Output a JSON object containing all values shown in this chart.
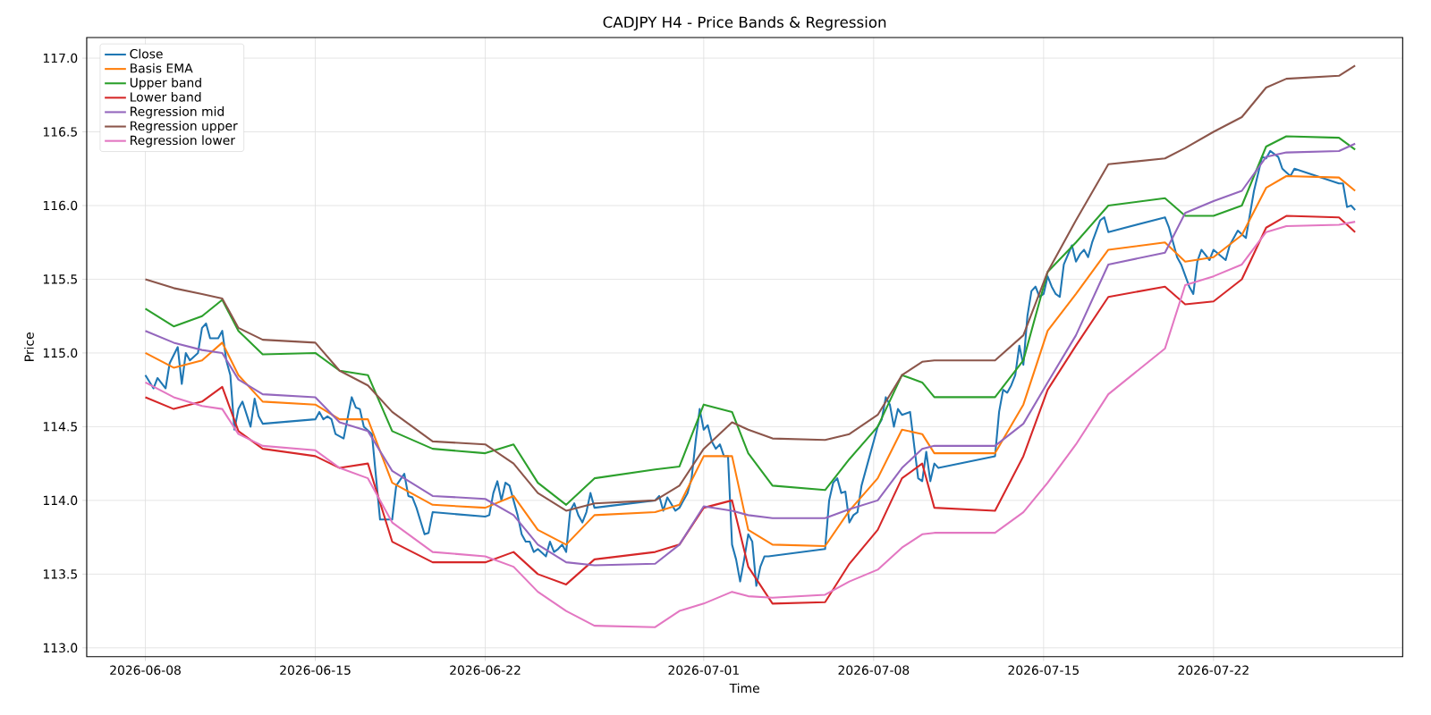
{
  "chart_data": {
    "type": "line",
    "title": "CADJPY H4 - Price Bands & Regression",
    "xlabel": "Time",
    "ylabel": "Price",
    "xlim": [
      "2026-06-05T14:00",
      "2026-07-29T19:00"
    ],
    "ylim": [
      112.94,
      117.14
    ],
    "xticks": [
      "2026-06-08",
      "2026-06-15",
      "2026-06-22",
      "2026-07-01",
      "2026-07-08",
      "2026-07-15",
      "2026-07-22"
    ],
    "yticks": [
      {
        "value": 113,
        "label": "113.0"
      },
      {
        "value": 113.5,
        "label": "113.5"
      },
      {
        "value": 114,
        "label": "114.0"
      },
      {
        "value": 114.5,
        "label": "114.5"
      },
      {
        "value": 115,
        "label": "115.0"
      },
      {
        "value": 115.5,
        "label": "115.5"
      },
      {
        "value": 116,
        "label": "116.0"
      },
      {
        "value": 116.5,
        "label": "116.5"
      },
      {
        "value": 117,
        "label": "117.0"
      }
    ],
    "grid": true,
    "legend": "top left",
    "marker": "none",
    "line_style": "solid",
    "series": [
      {
        "name": "Close",
        "color": "#1f77b4",
        "x": [
          "2026-06-08T00:00",
          "2026-06-08T08:00",
          "2026-06-08T12:00",
          "2026-06-08T20:00",
          "2026-06-09T00:00",
          "2026-06-09T08:00",
          "2026-06-09T12:00",
          "2026-06-09T16:00",
          "2026-06-09T20:00",
          "2026-06-10T04:00",
          "2026-06-10T08:00",
          "2026-06-10T12:00",
          "2026-06-10T16:00",
          "2026-06-11T00:00",
          "2026-06-11T04:00",
          "2026-06-11T08:00",
          "2026-06-11T12:00",
          "2026-06-11T16:00",
          "2026-06-11T20:00",
          "2026-06-12T00:00",
          "2026-06-12T08:00",
          "2026-06-12T12:00",
          "2026-06-12T16:00",
          "2026-06-12T20:00",
          "2026-06-15T00:00",
          "2026-06-15T04:00",
          "2026-06-15T08:00",
          "2026-06-15T12:00",
          "2026-06-15T16:00",
          "2026-06-15T20:00",
          "2026-06-16T04:00",
          "2026-06-16T12:00",
          "2026-06-16T16:00",
          "2026-06-16T20:00",
          "2026-06-17T00:00",
          "2026-06-17T08:00",
          "2026-06-17T16:00",
          "2026-06-18T04:00",
          "2026-06-18T08:00",
          "2026-06-18T16:00",
          "2026-06-18T20:00",
          "2026-06-19T00:00",
          "2026-06-19T04:00",
          "2026-06-19T12:00",
          "2026-06-19T16:00",
          "2026-06-19T20:00",
          "2026-06-22T00:00",
          "2026-06-22T04:00",
          "2026-06-22T08:00",
          "2026-06-22T12:00",
          "2026-06-22T16:00",
          "2026-06-22T20:00",
          "2026-06-23T00:00",
          "2026-06-23T04:00",
          "2026-06-23T08:00",
          "2026-06-23T12:00",
          "2026-06-23T16:00",
          "2026-06-23T20:00",
          "2026-06-24T00:00",
          "2026-06-24T04:00",
          "2026-06-24T12:00",
          "2026-06-24T16:00",
          "2026-06-24T20:00",
          "2026-06-25T00:00",
          "2026-06-25T04:00",
          "2026-06-25T08:00",
          "2026-06-25T12:00",
          "2026-06-25T16:00",
          "2026-06-25T20:00",
          "2026-06-26T00:00",
          "2026-06-26T04:00",
          "2026-06-26T08:00",
          "2026-06-26T12:00",
          "2026-06-29T00:00",
          "2026-06-29T04:00",
          "2026-06-29T08:00",
          "2026-06-29T12:00",
          "2026-06-29T20:00",
          "2026-06-30T00:00",
          "2026-06-30T08:00",
          "2026-06-30T12:00",
          "2026-06-30T16:00",
          "2026-06-30T20:00",
          "2026-07-01T00:00",
          "2026-07-01T04:00",
          "2026-07-01T08:00",
          "2026-07-01T12:00",
          "2026-07-01T16:00",
          "2026-07-01T20:00",
          "2026-07-02T00:00",
          "2026-07-02T04:00",
          "2026-07-02T08:00",
          "2026-07-02T12:00",
          "2026-07-02T16:00",
          "2026-07-02T20:00",
          "2026-07-03T00:00",
          "2026-07-03T04:00",
          "2026-07-03T08:00",
          "2026-07-03T12:00",
          "2026-07-03T16:00",
          "2026-07-06T00:00",
          "2026-07-06T04:00",
          "2026-07-06T08:00",
          "2026-07-06T12:00",
          "2026-07-06T16:00",
          "2026-07-06T20:00",
          "2026-07-07T00:00",
          "2026-07-07T04:00",
          "2026-07-07T08:00",
          "2026-07-07T12:00",
          "2026-07-07T20:00",
          "2026-07-08T04:00",
          "2026-07-08T08:00",
          "2026-07-08T12:00",
          "2026-07-08T16:00",
          "2026-07-08T20:00",
          "2026-07-09T00:00",
          "2026-07-09T04:00",
          "2026-07-09T12:00",
          "2026-07-09T20:00",
          "2026-07-10T00:00",
          "2026-07-10T04:00",
          "2026-07-10T08:00",
          "2026-07-10T12:00",
          "2026-07-10T16:00",
          "2026-07-13T00:00",
          "2026-07-13T04:00",
          "2026-07-13T08:00",
          "2026-07-13T12:00",
          "2026-07-13T16:00",
          "2026-07-13T20:00",
          "2026-07-14T00:00",
          "2026-07-14T04:00",
          "2026-07-14T08:00",
          "2026-07-14T12:00",
          "2026-07-14T16:00",
          "2026-07-14T20:00",
          "2026-07-15T00:00",
          "2026-07-15T04:00",
          "2026-07-15T08:00",
          "2026-07-15T12:00",
          "2026-07-15T16:00",
          "2026-07-15T20:00",
          "2026-07-16T04:00",
          "2026-07-16T08:00",
          "2026-07-16T12:00",
          "2026-07-16T16:00",
          "2026-07-16T20:00",
          "2026-07-17T00:00",
          "2026-07-17T08:00",
          "2026-07-17T12:00",
          "2026-07-17T16:00",
          "2026-07-20T00:00",
          "2026-07-20T04:00",
          "2026-07-20T12:00",
          "2026-07-20T16:00",
          "2026-07-21T00:00",
          "2026-07-21T04:00",
          "2026-07-21T08:00",
          "2026-07-21T12:00",
          "2026-07-21T20:00",
          "2026-07-22T00:00",
          "2026-07-22T12:00",
          "2026-07-22T16:00",
          "2026-07-23T00:00",
          "2026-07-23T08:00",
          "2026-07-23T16:00",
          "2026-07-24T00:00",
          "2026-07-24T04:00",
          "2026-07-24T08:00",
          "2026-07-24T16:00",
          "2026-07-24T20:00",
          "2026-07-25T04:00",
          "2026-07-25T08:00",
          "2026-07-27T04:00",
          "2026-07-27T08:00",
          "2026-07-27T12:00",
          "2026-07-27T16:00",
          "2026-07-27T20:00"
        ],
        "values": [
          114.85,
          114.76,
          114.83,
          114.76,
          114.93,
          115.04,
          114.79,
          115.0,
          114.95,
          115.0,
          115.17,
          115.2,
          115.1,
          115.1,
          115.15,
          114.95,
          114.85,
          114.48,
          114.62,
          114.67,
          114.5,
          114.69,
          114.57,
          114.52,
          114.55,
          114.6,
          114.55,
          114.57,
          114.55,
          114.45,
          114.42,
          114.7,
          114.63,
          114.62,
          114.5,
          114.45,
          113.87,
          113.87,
          114.1,
          114.18,
          114.03,
          114.02,
          113.95,
          113.77,
          113.78,
          113.92,
          113.89,
          113.9,
          114.05,
          114.13,
          114.0,
          114.12,
          114.1,
          114.0,
          113.9,
          113.77,
          113.72,
          113.72,
          113.65,
          113.67,
          113.62,
          113.72,
          113.65,
          113.67,
          113.7,
          113.65,
          113.93,
          113.98,
          113.9,
          113.85,
          113.92,
          114.05,
          113.95,
          114.0,
          114.03,
          113.93,
          114.02,
          113.93,
          113.95,
          114.05,
          114.15,
          114.4,
          114.62,
          114.48,
          114.51,
          114.4,
          114.35,
          114.38,
          114.3,
          114.3,
          113.7,
          113.6,
          113.45,
          113.6,
          113.77,
          113.72,
          113.42,
          113.55,
          113.62,
          113.62,
          113.67,
          114.0,
          114.12,
          114.15,
          114.05,
          114.06,
          113.85,
          113.9,
          113.92,
          114.1,
          114.3,
          114.5,
          114.55,
          114.7,
          114.65,
          114.5,
          114.62,
          114.58,
          114.6,
          114.15,
          114.13,
          114.33,
          114.13,
          114.25,
          114.22,
          114.3,
          114.6,
          114.75,
          114.73,
          114.78,
          114.85,
          115.05,
          114.92,
          115.25,
          115.42,
          115.45,
          115.38,
          115.4,
          115.52,
          115.45,
          115.4,
          115.38,
          115.6,
          115.73,
          115.62,
          115.67,
          115.7,
          115.65,
          115.75,
          115.9,
          115.92,
          115.82,
          115.92,
          115.85,
          115.65,
          115.6,
          115.45,
          115.4,
          115.62,
          115.7,
          115.63,
          115.7,
          115.63,
          115.73,
          115.83,
          115.78,
          116.1,
          116.33,
          116.32,
          116.37,
          116.33,
          116.25,
          116.2,
          116.25,
          116.15,
          116.15,
          115.99,
          116.0,
          115.97
        ]
      },
      {
        "name": "Basis EMA",
        "color": "#ff7f0e",
        "x": [
          "2026-06-08T00:00",
          "2026-06-09T04:00",
          "2026-06-10T08:00",
          "2026-06-11T04:00",
          "2026-06-11T20:00",
          "2026-06-12T20:00",
          "2026-06-15T00:00",
          "2026-06-16T00:00",
          "2026-06-17T04:00",
          "2026-06-18T04:00",
          "2026-06-19T20:00",
          "2026-06-22T00:00",
          "2026-06-23T04:00",
          "2026-06-24T04:00",
          "2026-06-25T08:00",
          "2026-06-26T12:00",
          "2026-06-29T00:00",
          "2026-06-30T00:00",
          "2026-07-01T00:00",
          "2026-07-02T04:00",
          "2026-07-02T20:00",
          "2026-07-03T20:00",
          "2026-07-06T00:00",
          "2026-07-07T00:00",
          "2026-07-08T04:00",
          "2026-07-09T04:00",
          "2026-07-10T00:00",
          "2026-07-10T12:00",
          "2026-07-13T00:00",
          "2026-07-14T04:00",
          "2026-07-15T04:00",
          "2026-07-16T08:00",
          "2026-07-17T16:00",
          "2026-07-20T00:00",
          "2026-07-20T20:00",
          "2026-07-22T00:00",
          "2026-07-23T04:00",
          "2026-07-24T04:00",
          "2026-07-25T00:00",
          "2026-07-27T04:00",
          "2026-07-27T20:00"
        ],
        "values": [
          115.0,
          114.9,
          114.95,
          115.07,
          114.85,
          114.67,
          114.65,
          114.55,
          114.55,
          114.12,
          113.97,
          113.95,
          114.03,
          113.8,
          113.7,
          113.9,
          113.92,
          113.97,
          114.3,
          114.3,
          113.8,
          113.7,
          113.69,
          113.93,
          114.15,
          114.48,
          114.45,
          114.32,
          114.32,
          114.65,
          115.15,
          115.4,
          115.7,
          115.75,
          115.62,
          115.65,
          115.8,
          116.12,
          116.2,
          116.19,
          116.1
        ]
      },
      {
        "name": "Upper band",
        "color": "#2ca02c",
        "x": [
          "2026-06-08T00:00",
          "2026-06-09T04:00",
          "2026-06-10T08:00",
          "2026-06-11T04:00",
          "2026-06-11T20:00",
          "2026-06-12T20:00",
          "2026-06-15T00:00",
          "2026-06-16T00:00",
          "2026-06-17T04:00",
          "2026-06-18T04:00",
          "2026-06-19T20:00",
          "2026-06-22T00:00",
          "2026-06-23T04:00",
          "2026-06-24T04:00",
          "2026-06-25T08:00",
          "2026-06-26T12:00",
          "2026-06-29T00:00",
          "2026-06-30T00:00",
          "2026-07-01T00:00",
          "2026-07-02T04:00",
          "2026-07-02T20:00",
          "2026-07-03T20:00",
          "2026-07-06T00:00",
          "2026-07-07T00:00",
          "2026-07-08T04:00",
          "2026-07-09T04:00",
          "2026-07-10T00:00",
          "2026-07-10T12:00",
          "2026-07-13T00:00",
          "2026-07-14T04:00",
          "2026-07-15T04:00",
          "2026-07-16T08:00",
          "2026-07-17T16:00",
          "2026-07-20T00:00",
          "2026-07-20T20:00",
          "2026-07-22T00:00",
          "2026-07-23T04:00",
          "2026-07-24T04:00",
          "2026-07-25T00:00",
          "2026-07-27T04:00",
          "2026-07-27T20:00"
        ],
        "values": [
          115.3,
          115.18,
          115.25,
          115.36,
          115.15,
          114.99,
          115.0,
          114.88,
          114.85,
          114.47,
          114.35,
          114.32,
          114.38,
          114.12,
          113.97,
          114.15,
          114.21,
          114.23,
          114.65,
          114.6,
          114.32,
          114.1,
          114.07,
          114.28,
          114.5,
          114.85,
          114.8,
          114.7,
          114.7,
          114.95,
          115.55,
          115.75,
          116.0,
          116.05,
          115.93,
          115.93,
          116.0,
          116.4,
          116.47,
          116.46,
          116.38
        ]
      },
      {
        "name": "Lower band",
        "color": "#d62728",
        "x": [
          "2026-06-08T00:00",
          "2026-06-09T04:00",
          "2026-06-10T08:00",
          "2026-06-11T04:00",
          "2026-06-11T20:00",
          "2026-06-12T20:00",
          "2026-06-15T00:00",
          "2026-06-16T00:00",
          "2026-06-17T04:00",
          "2026-06-18T04:00",
          "2026-06-19T20:00",
          "2026-06-22T00:00",
          "2026-06-23T04:00",
          "2026-06-24T04:00",
          "2026-06-25T08:00",
          "2026-06-26T12:00",
          "2026-06-29T00:00",
          "2026-06-30T00:00",
          "2026-07-01T00:00",
          "2026-07-02T04:00",
          "2026-07-02T20:00",
          "2026-07-03T20:00",
          "2026-07-06T00:00",
          "2026-07-07T00:00",
          "2026-07-08T04:00",
          "2026-07-09T04:00",
          "2026-07-10T00:00",
          "2026-07-10T12:00",
          "2026-07-13T00:00",
          "2026-07-14T04:00",
          "2026-07-15T04:00",
          "2026-07-16T08:00",
          "2026-07-17T16:00",
          "2026-07-20T00:00",
          "2026-07-20T20:00",
          "2026-07-22T00:00",
          "2026-07-23T04:00",
          "2026-07-24T04:00",
          "2026-07-25T00:00",
          "2026-07-27T04:00",
          "2026-07-27T20:00"
        ],
        "values": [
          114.7,
          114.62,
          114.67,
          114.77,
          114.47,
          114.35,
          114.3,
          114.22,
          114.25,
          113.72,
          113.58,
          113.58,
          113.65,
          113.5,
          113.43,
          113.6,
          113.65,
          113.7,
          113.95,
          114.0,
          113.55,
          113.3,
          113.31,
          113.57,
          113.8,
          114.15,
          114.25,
          113.95,
          113.93,
          114.3,
          114.75,
          115.05,
          115.38,
          115.45,
          115.33,
          115.35,
          115.5,
          115.85,
          115.93,
          115.92,
          115.82
        ]
      },
      {
        "name": "Regression mid",
        "color": "#9467bd",
        "x": [
          "2026-06-08T00:00",
          "2026-06-09T04:00",
          "2026-06-10T08:00",
          "2026-06-11T04:00",
          "2026-06-11T20:00",
          "2026-06-12T20:00",
          "2026-06-15T00:00",
          "2026-06-16T00:00",
          "2026-06-17T04:00",
          "2026-06-18T04:00",
          "2026-06-19T20:00",
          "2026-06-22T00:00",
          "2026-06-23T04:00",
          "2026-06-24T04:00",
          "2026-06-25T08:00",
          "2026-06-26T12:00",
          "2026-06-29T00:00",
          "2026-06-30T00:00",
          "2026-07-01T00:00",
          "2026-07-02T04:00",
          "2026-07-02T20:00",
          "2026-07-03T20:00",
          "2026-07-06T00:00",
          "2026-07-07T00:00",
          "2026-07-08T04:00",
          "2026-07-09T04:00",
          "2026-07-10T00:00",
          "2026-07-10T12:00",
          "2026-07-13T00:00",
          "2026-07-14T04:00",
          "2026-07-15T04:00",
          "2026-07-16T08:00",
          "2026-07-17T16:00",
          "2026-07-20T00:00",
          "2026-07-20T20:00",
          "2026-07-22T00:00",
          "2026-07-23T04:00",
          "2026-07-24T04:00",
          "2026-07-25T00:00",
          "2026-07-27T04:00",
          "2026-07-27T20:00"
        ],
        "values": [
          115.15,
          115.07,
          115.02,
          115.0,
          114.82,
          114.72,
          114.7,
          114.53,
          114.47,
          114.2,
          114.03,
          114.01,
          113.9,
          113.7,
          113.58,
          113.56,
          113.57,
          113.7,
          113.96,
          113.93,
          113.9,
          113.88,
          113.88,
          113.94,
          114.0,
          114.22,
          114.35,
          114.37,
          114.37,
          114.52,
          114.8,
          115.12,
          115.6,
          115.68,
          115.95,
          116.03,
          116.1,
          116.33,
          116.36,
          116.37,
          116.42
        ]
      },
      {
        "name": "Regression upper",
        "color": "#8c564b",
        "x": [
          "2026-06-08T00:00",
          "2026-06-09T04:00",
          "2026-06-10T08:00",
          "2026-06-11T04:00",
          "2026-06-11T20:00",
          "2026-06-12T20:00",
          "2026-06-15T00:00",
          "2026-06-16T00:00",
          "2026-06-17T04:00",
          "2026-06-18T04:00",
          "2026-06-19T20:00",
          "2026-06-22T00:00",
          "2026-06-23T04:00",
          "2026-06-24T04:00",
          "2026-06-25T08:00",
          "2026-06-26T12:00",
          "2026-06-29T00:00",
          "2026-06-30T00:00",
          "2026-07-01T00:00",
          "2026-07-02T04:00",
          "2026-07-02T20:00",
          "2026-07-03T20:00",
          "2026-07-06T00:00",
          "2026-07-07T00:00",
          "2026-07-08T04:00",
          "2026-07-09T04:00",
          "2026-07-10T00:00",
          "2026-07-10T12:00",
          "2026-07-13T00:00",
          "2026-07-14T04:00",
          "2026-07-15T04:00",
          "2026-07-16T08:00",
          "2026-07-17T16:00",
          "2026-07-20T00:00",
          "2026-07-20T20:00",
          "2026-07-22T00:00",
          "2026-07-23T04:00",
          "2026-07-24T04:00",
          "2026-07-25T00:00",
          "2026-07-27T04:00",
          "2026-07-27T20:00"
        ],
        "values": [
          115.5,
          115.44,
          115.4,
          115.37,
          115.17,
          115.09,
          115.07,
          114.88,
          114.78,
          114.6,
          114.4,
          114.38,
          114.25,
          114.05,
          113.93,
          113.98,
          114.0,
          114.1,
          114.35,
          114.53,
          114.48,
          114.42,
          114.41,
          114.45,
          114.58,
          114.85,
          114.94,
          114.95,
          114.95,
          115.12,
          115.55,
          115.9,
          116.28,
          116.32,
          116.39,
          116.5,
          116.6,
          116.8,
          116.86,
          116.88,
          116.95
        ]
      },
      {
        "name": "Regression lower",
        "color": "#e377c2",
        "x": [
          "2026-06-08T00:00",
          "2026-06-09T04:00",
          "2026-06-10T08:00",
          "2026-06-11T04:00",
          "2026-06-11T20:00",
          "2026-06-12T20:00",
          "2026-06-15T00:00",
          "2026-06-16T00:00",
          "2026-06-17T04:00",
          "2026-06-18T04:00",
          "2026-06-19T20:00",
          "2026-06-22T00:00",
          "2026-06-23T04:00",
          "2026-06-24T04:00",
          "2026-06-25T08:00",
          "2026-06-26T12:00",
          "2026-06-29T00:00",
          "2026-06-30T00:00",
          "2026-07-01T00:00",
          "2026-07-02T04:00",
          "2026-07-02T20:00",
          "2026-07-03T20:00",
          "2026-07-06T00:00",
          "2026-07-07T00:00",
          "2026-07-08T04:00",
          "2026-07-09T04:00",
          "2026-07-10T00:00",
          "2026-07-10T12:00",
          "2026-07-13T00:00",
          "2026-07-14T04:00",
          "2026-07-15T04:00",
          "2026-07-16T08:00",
          "2026-07-17T16:00",
          "2026-07-20T00:00",
          "2026-07-20T20:00",
          "2026-07-22T00:00",
          "2026-07-23T04:00",
          "2026-07-24T04:00",
          "2026-07-25T00:00",
          "2026-07-27T04:00",
          "2026-07-27T20:00"
        ],
        "values": [
          114.8,
          114.7,
          114.64,
          114.62,
          114.45,
          114.37,
          114.34,
          114.22,
          114.15,
          113.85,
          113.65,
          113.62,
          113.55,
          113.38,
          113.25,
          113.15,
          113.14,
          113.25,
          113.3,
          113.38,
          113.35,
          113.34,
          113.36,
          113.45,
          113.53,
          113.68,
          113.77,
          113.78,
          113.78,
          113.92,
          114.12,
          114.38,
          114.72,
          115.03,
          115.46,
          115.52,
          115.6,
          115.82,
          115.86,
          115.87,
          115.89
        ]
      }
    ]
  }
}
